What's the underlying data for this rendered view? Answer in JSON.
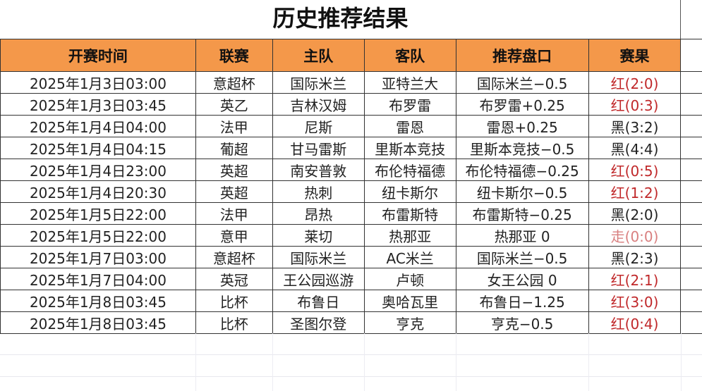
{
  "title": "历史推荐结果",
  "columns": [
    "开赛时间",
    "联赛",
    "主队",
    "客队",
    "推荐盘口",
    "赛果"
  ],
  "result_colors": {
    "红": "#c0282a",
    "黑": "#222222",
    "走": "#d98080"
  },
  "header_color": "#F4984A",
  "rows": [
    {
      "time": "2025年1月3日03:00",
      "league": "意超杯",
      "home": "国际米兰",
      "away": "亚特兰大",
      "pick": "国际米兰−0.5",
      "result": "红(2:0)",
      "outcome": "红"
    },
    {
      "time": "2025年1月3日03:45",
      "league": "英乙",
      "home": "吉林汉姆",
      "away": "布罗雷",
      "pick": "布罗雷+0.25",
      "result": "红(0:3)",
      "outcome": "红"
    },
    {
      "time": "2025年1月4日04:00",
      "league": "法甲",
      "home": "尼斯",
      "away": "雷恩",
      "pick": "雷恩+0.25",
      "result": "黑(3:2)",
      "outcome": "黑"
    },
    {
      "time": "2025年1月4日04:15",
      "league": "葡超",
      "home": "甘马雷斯",
      "away": "里斯本竞技",
      "pick": "里斯本竞技−0.5",
      "result": "黑(4:4)",
      "outcome": "黑"
    },
    {
      "time": "2025年1月4日23:00",
      "league": "英超",
      "home": "南安普敦",
      "away": "布伦特福德",
      "pick": "布伦特福德−0.25",
      "result": "红(0:5)",
      "outcome": "红"
    },
    {
      "time": "2025年1月4日20:30",
      "league": "英超",
      "home": "热刺",
      "away": "纽卡斯尔",
      "pick": "纽卡斯尔−0.5",
      "result": "红(1:2)",
      "outcome": "红"
    },
    {
      "time": "2025年1月5日22:00",
      "league": "法甲",
      "home": "昂热",
      "away": "布雷斯特",
      "pick": "布雷斯特−0.25",
      "result": "黑(2:0)",
      "outcome": "黑"
    },
    {
      "time": "2025年1月5日22:00",
      "league": "意甲",
      "home": "莱切",
      "away": "热那亚",
      "pick": "热那亚 0",
      "result": "走(0:0)",
      "outcome": "走"
    },
    {
      "time": "2025年1月7日03:00",
      "league": "意超杯",
      "home": "国际米兰",
      "away": "AC米兰",
      "pick": "国际米兰−0.5",
      "result": "黑(2:3)",
      "outcome": "黑"
    },
    {
      "time": "2025年1月7日04:00",
      "league": "英冠",
      "home": "王公园巡游",
      "away": "卢顿",
      "pick": "女王公园 0",
      "result": "红(2:1)",
      "outcome": "红"
    },
    {
      "time": "2025年1月8日03:45",
      "league": "比杯",
      "home": "布鲁日",
      "away": "奥哈瓦里",
      "pick": "布鲁日−1.25",
      "result": "红(3:0)",
      "outcome": "红"
    },
    {
      "time": "2025年1月8日03:45",
      "league": "比杯",
      "home": "圣图尔登",
      "away": "亨克",
      "pick": "亨克−0.5",
      "result": "红(0:4)",
      "outcome": "红"
    }
  ]
}
